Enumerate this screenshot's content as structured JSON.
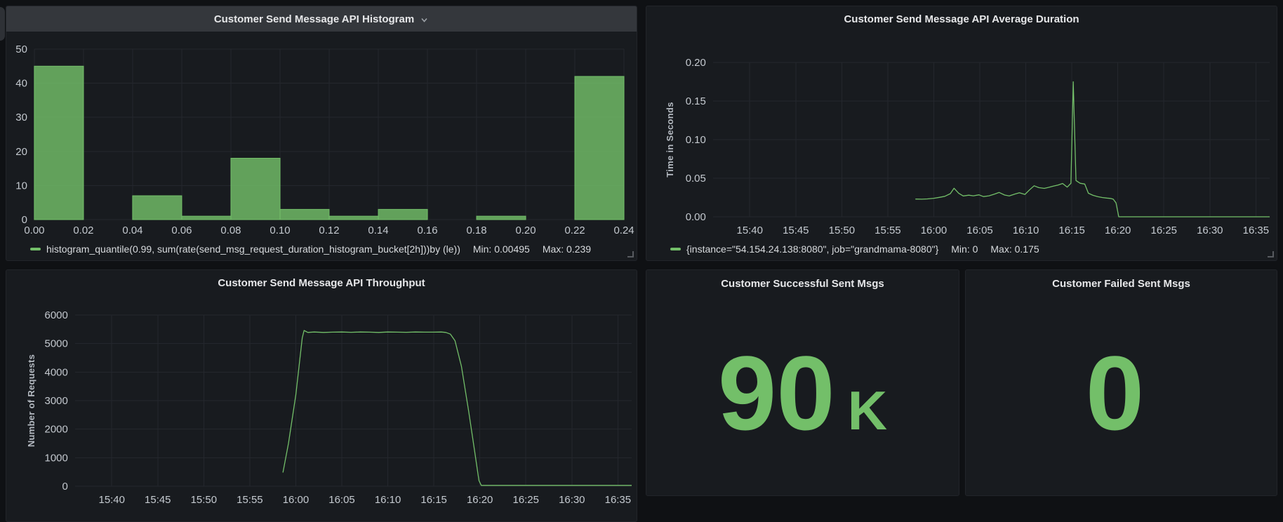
{
  "theme": {
    "accent_green": "#73bf69",
    "page_bg": "#0f1114",
    "panel_bg": "#181b1f",
    "header_bg": "#34373c"
  },
  "panels": {
    "histogram": {
      "title": "Customer Send Message API Histogram",
      "legend": {
        "series": "histogram_quantile(0.99, sum(rate(send_msg_request_duration_histogram_bucket[2h]))by (le))",
        "min": "Min: 0.00495",
        "max": "Max: 0.239"
      }
    },
    "avg_duration": {
      "title": "Customer Send Message API Average Duration",
      "ylabel": "Time in Seconds",
      "legend": {
        "series": "{instance=\"54.154.24.138:8080\", job=\"grandmama-8080\"}",
        "min": "Min: 0",
        "max": "Max: 0.175"
      }
    },
    "throughput": {
      "title": "Customer Send Message API Throughput",
      "ylabel": "Number of Requests"
    },
    "success_stat": {
      "title": "Customer Successful Sent Msgs",
      "value": "90",
      "suffix": "K"
    },
    "failed_stat": {
      "title": "Customer Failed Sent Msgs",
      "value": "0",
      "suffix": ""
    }
  },
  "chart_data": [
    {
      "id": "histogram",
      "type": "bar",
      "title": "Customer Send Message API Histogram",
      "series_label": "histogram_quantile(0.99, sum(rate(send_msg_request_duration_histogram_bucket[2h]))by (le))",
      "bucket_start": 0,
      "bucket_width": 0.02,
      "values": [
        45,
        0,
        7,
        1,
        18,
        3,
        1,
        3,
        0,
        1,
        0,
        42
      ],
      "xlim": [
        0,
        0.24
      ],
      "x_tick_values": [
        0,
        0.02,
        0.04,
        0.06,
        0.08,
        0.1,
        0.12,
        0.14,
        0.16,
        0.18,
        0.2,
        0.22,
        0.24
      ],
      "x_tick_labels": [
        "0.00",
        "0.02",
        "0.04",
        "0.06",
        "0.08",
        "0.10",
        "0.12",
        "0.14",
        "0.16",
        "0.18",
        "0.20",
        "0.22",
        "0.24"
      ],
      "y_ticks": [
        0,
        10,
        20,
        30,
        40,
        50
      ],
      "y_tick_labels": [
        "0",
        "10",
        "20",
        "30",
        "40",
        "50"
      ],
      "ylim": [
        0,
        50
      ],
      "min": 0.00495,
      "max": 0.239,
      "grid": true,
      "legend_position": "bottom"
    },
    {
      "id": "avg_duration",
      "type": "line",
      "title": "Customer Send Message API Average Duration",
      "ylabel": "Time in Seconds",
      "series_label": "{instance=\"54.154.24.138:8080\", job=\"grandmama-8080\"}",
      "xlim_minutes": [
        36,
        96.5
      ],
      "points": [
        [
          58.0,
          0.023
        ],
        [
          58.7,
          0.0228
        ],
        [
          59.3,
          0.0232
        ],
        [
          60.0,
          0.024
        ],
        [
          60.6,
          0.0252
        ],
        [
          61.2,
          0.0265
        ],
        [
          61.8,
          0.03
        ],
        [
          62.2,
          0.037
        ],
        [
          62.7,
          0.0305
        ],
        [
          63.2,
          0.027
        ],
        [
          63.8,
          0.028
        ],
        [
          64.3,
          0.0272
        ],
        [
          64.9,
          0.0285
        ],
        [
          65.4,
          0.0262
        ],
        [
          66.0,
          0.0272
        ],
        [
          66.6,
          0.0295
        ],
        [
          67.1,
          0.0315
        ],
        [
          67.7,
          0.0282
        ],
        [
          68.2,
          0.027
        ],
        [
          68.8,
          0.0295
        ],
        [
          69.3,
          0.0312
        ],
        [
          69.9,
          0.029
        ],
        [
          70.4,
          0.0348
        ],
        [
          70.9,
          0.0402
        ],
        [
          71.4,
          0.0378
        ],
        [
          72.0,
          0.0368
        ],
        [
          72.5,
          0.0382
        ],
        [
          73.0,
          0.0398
        ],
        [
          73.5,
          0.0412
        ],
        [
          74.0,
          0.0432
        ],
        [
          74.5,
          0.0385
        ],
        [
          74.9,
          0.0435
        ],
        [
          75.15,
          0.175
        ],
        [
          75.45,
          0.047
        ],
        [
          75.9,
          0.0435
        ],
        [
          76.4,
          0.0425
        ],
        [
          76.8,
          0.0305
        ],
        [
          77.3,
          0.0278
        ],
        [
          77.8,
          0.0262
        ],
        [
          78.3,
          0.025
        ],
        [
          78.8,
          0.0243
        ],
        [
          79.2,
          0.0238
        ],
        [
          79.5,
          0.0228
        ],
        [
          79.8,
          0.018
        ],
        [
          80.1,
          0.0
        ],
        [
          96.5,
          0.0
        ]
      ],
      "x_tick_minutes": [
        40,
        45,
        50,
        55,
        60,
        65,
        70,
        75,
        80,
        85,
        90,
        95
      ],
      "x_tick_labels": [
        "15:40",
        "15:45",
        "15:50",
        "15:55",
        "16:00",
        "16:05",
        "16:10",
        "16:15",
        "16:20",
        "16:25",
        "16:30",
        "16:35"
      ],
      "y_ticks": [
        0,
        0.05,
        0.1,
        0.15,
        0.2
      ],
      "y_tick_labels": [
        "0.00",
        "0.05",
        "0.10",
        "0.15",
        "0.20"
      ],
      "ylim": [
        0,
        0.2
      ],
      "min": 0,
      "max": 0.175,
      "grid": true,
      "legend_position": "bottom"
    },
    {
      "id": "throughput",
      "type": "line",
      "title": "Customer Send Message API Throughput",
      "ylabel": "Number of Requests",
      "series_label": "",
      "xlim_minutes": [
        36,
        96.5
      ],
      "points": [
        [
          58.6,
          480
        ],
        [
          59.2,
          1500
        ],
        [
          60.0,
          3200
        ],
        [
          60.7,
          5200
        ],
        [
          60.9,
          5460
        ],
        [
          61.3,
          5390
        ],
        [
          62,
          5405
        ],
        [
          63,
          5390
        ],
        [
          64,
          5400
        ],
        [
          65,
          5405
        ],
        [
          66,
          5395
        ],
        [
          67,
          5405
        ],
        [
          68,
          5400
        ],
        [
          69,
          5390
        ],
        [
          70,
          5405
        ],
        [
          71,
          5400
        ],
        [
          72,
          5395
        ],
        [
          73,
          5405
        ],
        [
          74,
          5400
        ],
        [
          75,
          5400
        ],
        [
          75.8,
          5405
        ],
        [
          76.3,
          5390
        ],
        [
          76.8,
          5330
        ],
        [
          77.3,
          5100
        ],
        [
          78,
          4200
        ],
        [
          78.8,
          2600
        ],
        [
          79.4,
          1300
        ],
        [
          79.9,
          200
        ],
        [
          80.15,
          30
        ],
        [
          96.5,
          30
        ]
      ],
      "x_tick_minutes": [
        40,
        45,
        50,
        55,
        60,
        65,
        70,
        75,
        80,
        85,
        90,
        95
      ],
      "x_tick_labels": [
        "15:40",
        "15:45",
        "15:50",
        "15:55",
        "16:00",
        "16:05",
        "16:10",
        "16:15",
        "16:20",
        "16:25",
        "16:30",
        "16:35"
      ],
      "y_ticks": [
        0,
        1000,
        2000,
        3000,
        4000,
        5000,
        6000
      ],
      "y_tick_labels": [
        "0",
        "1000",
        "2000",
        "3000",
        "4000",
        "5000",
        "6000"
      ],
      "ylim": [
        0,
        6000
      ],
      "grid": true
    },
    {
      "id": "success_stat",
      "type": "stat",
      "title": "Customer Successful Sent Msgs",
      "value": 90000,
      "display_value": "90 K"
    },
    {
      "id": "failed_stat",
      "type": "stat",
      "title": "Customer Failed Sent Msgs",
      "value": 0,
      "display_value": "0"
    }
  ]
}
